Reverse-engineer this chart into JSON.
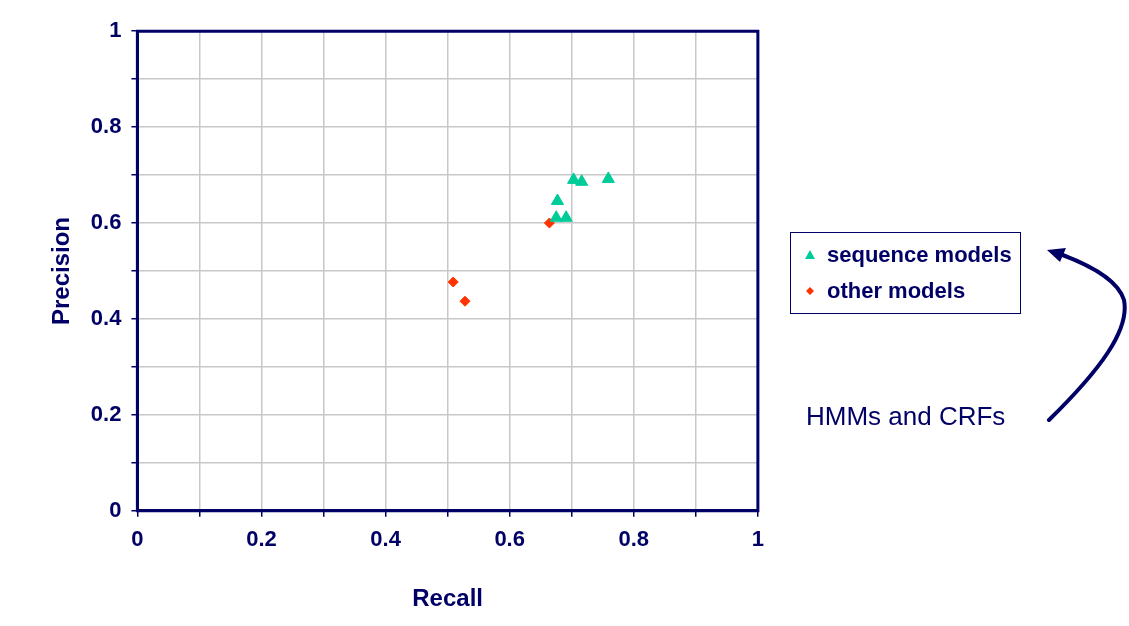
{
  "chart_data": {
    "type": "scatter",
    "xlabel": "Recall",
    "ylabel": "Precision",
    "xlim": [
      0,
      1
    ],
    "ylim": [
      0,
      1
    ],
    "xticks": [
      0,
      {
        "value": 0.1,
        "label": null
      },
      0.2,
      {
        "value": 0.3,
        "label": null
      },
      0.4,
      {
        "value": 0.5,
        "label": null
      },
      0.6,
      {
        "value": 0.7,
        "label": null
      },
      0.8,
      {
        "value": 0.9,
        "label": null
      },
      1
    ],
    "yticks": [
      0,
      {
        "value": 0.1,
        "label": null
      },
      0.2,
      {
        "value": 0.3,
        "label": null
      },
      0.4,
      {
        "value": 0.5,
        "label": null
      },
      0.6,
      {
        "value": 0.7,
        "label": null
      },
      0.8,
      {
        "value": 0.9,
        "label": null
      },
      1
    ],
    "grid": true,
    "legend": "right",
    "series": [
      {
        "name": "sequence models",
        "color": "#00cc99",
        "marker": "triangle",
        "x": [
          0.703,
          0.716,
          0.759,
          0.677,
          0.675,
          0.691
        ],
        "values": [
          0.69,
          0.686,
          0.692,
          0.646,
          0.611,
          0.611
        ]
      },
      {
        "name": "other models",
        "color": "#ff3300",
        "marker": "diamond",
        "x": [
          0.664,
          0.509,
          0.528
        ],
        "values": [
          0.6,
          0.477,
          0.437
        ]
      }
    ],
    "annotations": [
      "HMMs and CRFs"
    ]
  }
}
